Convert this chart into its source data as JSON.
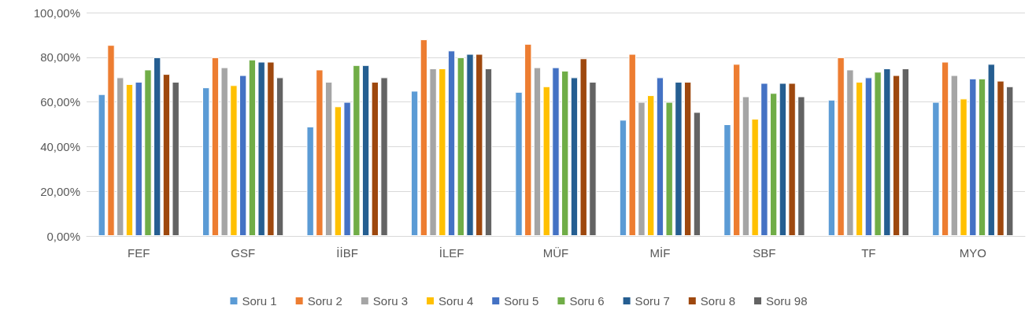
{
  "chart_data": {
    "type": "bar",
    "categories": [
      "FEF",
      "GSF",
      "İİBF",
      "İLEF",
      "MÜF",
      "MİF",
      "SBF",
      "TF",
      "MYO"
    ],
    "series": [
      {
        "name": "Soru 1",
        "color": "#5b9bd5",
        "values": [
          63.5,
          66.5,
          49,
          65,
          64.5,
          52,
          50,
          61,
          60
        ]
      },
      {
        "name": "Soru 2",
        "color": "#ed7d31",
        "values": [
          85.5,
          80,
          74.5,
          88,
          86,
          81.5,
          77,
          80,
          78
        ]
      },
      {
        "name": "Soru 3",
        "color": "#a5a5a5",
        "values": [
          71,
          75.5,
          69,
          75,
          75.5,
          60,
          62.5,
          74.5,
          72
        ]
      },
      {
        "name": "Soru 4",
        "color": "#ffc000",
        "values": [
          68,
          67.5,
          58,
          75,
          67,
          63,
          52.5,
          69,
          61.5
        ]
      },
      {
        "name": "Soru 5",
        "color": "#4472c4",
        "values": [
          69,
          72,
          60,
          83,
          75.5,
          71,
          68.5,
          71,
          70.5
        ]
      },
      {
        "name": "Soru 6",
        "color": "#70ad47",
        "values": [
          74.5,
          79,
          76.5,
          80,
          74,
          60,
          64,
          73.5,
          70.5
        ]
      },
      {
        "name": "Soru 7",
        "color": "#255e91",
        "values": [
          80,
          78,
          76.5,
          81.5,
          71,
          69,
          68.5,
          75,
          77
        ]
      },
      {
        "name": "Soru 8",
        "color": "#9e480e",
        "values": [
          72.5,
          78,
          69,
          81.5,
          79.5,
          69,
          68.5,
          72,
          69.5
        ]
      },
      {
        "name": "Soru 98",
        "color": "#636363",
        "values": [
          69,
          71,
          71,
          75,
          69,
          55.5,
          62.5,
          75,
          67
        ]
      }
    ],
    "ylim": [
      0,
      100
    ],
    "yticks": [
      {
        "value": 0,
        "label": "0,00%"
      },
      {
        "value": 20,
        "label": "20,00%"
      },
      {
        "value": 40,
        "label": "40,00%"
      },
      {
        "value": 60,
        "label": "60,00%"
      },
      {
        "value": 80,
        "label": "80,00%"
      },
      {
        "value": 100,
        "label": "100,00%"
      }
    ],
    "grid": "y",
    "legend": "bottom"
  }
}
